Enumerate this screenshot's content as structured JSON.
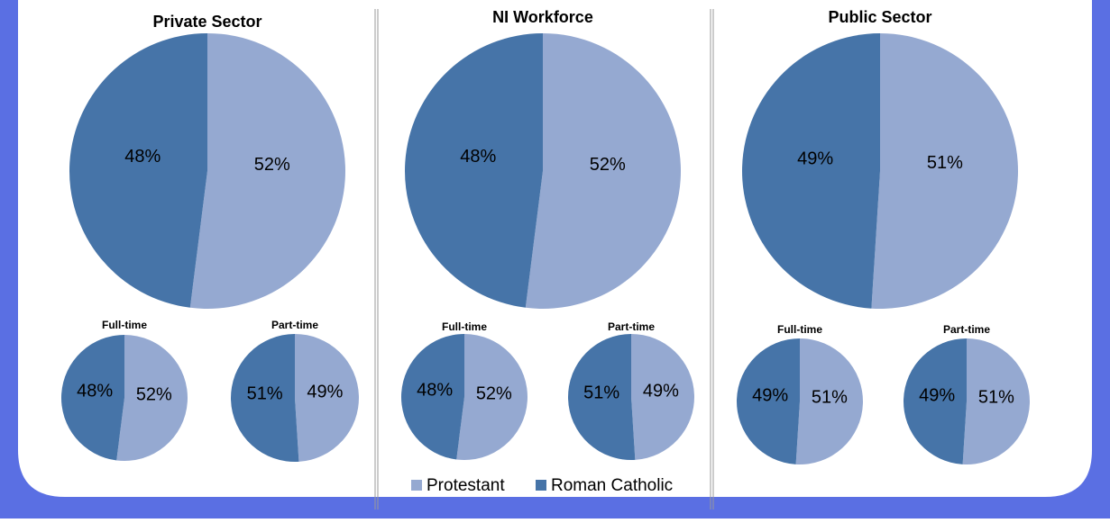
{
  "chart_data": [
    {
      "type": "pie",
      "title": "Private Sector",
      "categories": [
        "Protestant",
        "Roman Catholic"
      ],
      "values": [
        52,
        48
      ],
      "value_labels": [
        "52%",
        "48%"
      ],
      "colors": [
        "#95a9d1",
        "#4674a8"
      ]
    },
    {
      "type": "pie",
      "title": "NI Workforce",
      "categories": [
        "Protestant",
        "Roman Catholic"
      ],
      "values": [
        52,
        48
      ],
      "value_labels": [
        "52%",
        "48%"
      ],
      "colors": [
        "#95a9d1",
        "#4674a8"
      ]
    },
    {
      "type": "pie",
      "title": "Public Sector",
      "categories": [
        "Protestant",
        "Roman Catholic"
      ],
      "values": [
        51,
        49
      ],
      "value_labels": [
        "51%",
        "49%"
      ],
      "colors": [
        "#95a9d1",
        "#4674a8"
      ]
    },
    {
      "type": "pie",
      "title": "Full-time",
      "categories": [
        "Protestant",
        "Roman Catholic"
      ],
      "values": [
        52,
        48
      ],
      "value_labels": [
        "52%",
        "48%"
      ],
      "colors": [
        "#95a9d1",
        "#4674a8"
      ]
    },
    {
      "type": "pie",
      "title": "Part-time",
      "categories": [
        "Protestant",
        "Roman Catholic"
      ],
      "values": [
        49,
        51
      ],
      "value_labels": [
        "49%",
        "51%"
      ],
      "colors": [
        "#95a9d1",
        "#4674a8"
      ]
    },
    {
      "type": "pie",
      "title": "Full-time",
      "categories": [
        "Protestant",
        "Roman Catholic"
      ],
      "values": [
        52,
        48
      ],
      "value_labels": [
        "52%",
        "48%"
      ],
      "colors": [
        "#95a9d1",
        "#4674a8"
      ]
    },
    {
      "type": "pie",
      "title": "Part-time",
      "categories": [
        "Protestant",
        "Roman Catholic"
      ],
      "values": [
        49,
        51
      ],
      "value_labels": [
        "49%",
        "51%"
      ],
      "colors": [
        "#95a9d1",
        "#4674a8"
      ]
    },
    {
      "type": "pie",
      "title": "Full-time",
      "categories": [
        "Protestant",
        "Roman Catholic"
      ],
      "values": [
        51,
        49
      ],
      "value_labels": [
        "51%",
        "49%"
      ],
      "colors": [
        "#95a9d1",
        "#4674a8"
      ]
    },
    {
      "type": "pie",
      "title": "Part-time",
      "categories": [
        "Protestant",
        "Roman Catholic"
      ],
      "values": [
        51,
        49
      ],
      "value_labels": [
        "51%",
        "49%"
      ],
      "colors": [
        "#95a9d1",
        "#4674a8"
      ]
    }
  ]
}
